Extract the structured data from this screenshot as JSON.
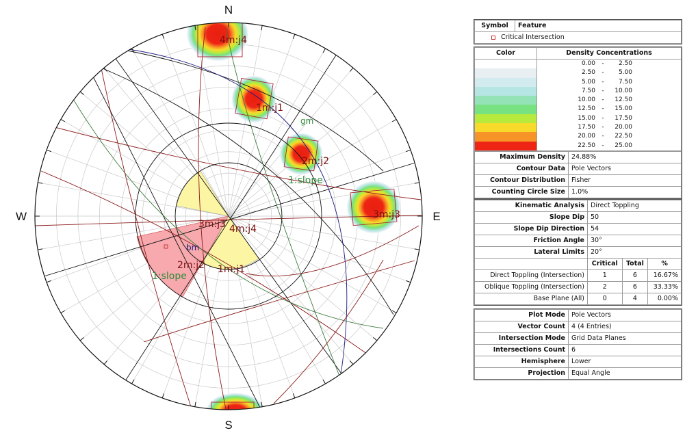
{
  "stereonet": {
    "directions": {
      "north": "N",
      "east": "E",
      "south": "S",
      "west": "W"
    },
    "set_labels": {
      "j1_pole": "1m:j1",
      "j2_pole": "2m:j2",
      "j3_pole": "3m:j3",
      "j4_pole": "4m:j4",
      "j1_plane": "1m:j1",
      "j2_plane": "2m:j2",
      "j3_plane": "3m:j3",
      "j4_plane": "4m:j4",
      "slope_pole": "1:slope",
      "slope_plane": "1:slope",
      "gm": "gm",
      "bm": "bm"
    },
    "colors": {
      "net_lines": "#a9a9a9",
      "circle": "#111111",
      "joint_planes": "#8b1a1a",
      "slope_plane": "#3b7a3b",
      "bm_plane": "#1c1c80",
      "critical_zone": "#f7a9ad",
      "secondary_zone": "#fbf5a4",
      "label_red": "#7a0f0f",
      "label_green": "#2e8b3a"
    }
  },
  "legend_symbol": {
    "headers": {
      "symbol": "Symbol",
      "feature": "Feature"
    },
    "rows": [
      {
        "feature": "Critical Intersection"
      }
    ]
  },
  "density": {
    "headers": {
      "color": "Color",
      "concentrations": "Density Concentrations"
    },
    "ranges": [
      {
        "from": "0.00",
        "sep": "-",
        "to": "2.50",
        "color": "#ffffff"
      },
      {
        "from": "2.50",
        "sep": "-",
        "to": "5.00",
        "color": "#e7eff3"
      },
      {
        "from": "5.00",
        "sep": "-",
        "to": "7.50",
        "color": "#d2ebef"
      },
      {
        "from": "7.50",
        "sep": "-",
        "to": "10.00",
        "color": "#b6e6e3"
      },
      {
        "from": "10.00",
        "sep": "-",
        "to": "12.50",
        "color": "#93e3b6"
      },
      {
        "from": "12.50",
        "sep": "-",
        "to": "15.00",
        "color": "#78e180"
      },
      {
        "from": "15.00",
        "sep": "-",
        "to": "17.50",
        "color": "#b8ea3e"
      },
      {
        "from": "17.50",
        "sep": "-",
        "to": "20.00",
        "color": "#f8db2a"
      },
      {
        "from": "20.00",
        "sep": "-",
        "to": "22.50",
        "color": "#f79428"
      },
      {
        "from": "22.50",
        "sep": "-",
        "to": "25.00",
        "color": "#ee2414"
      }
    ],
    "stats": [
      {
        "label": "Maximum Density",
        "value": "24.88%"
      },
      {
        "label": "Contour Data",
        "value": "Pole Vectors"
      },
      {
        "label": "Contour Distribution",
        "value": "Fisher"
      },
      {
        "label": "Counting Circle Size",
        "value": "1.0%"
      }
    ]
  },
  "kinematic": {
    "params": [
      {
        "label": "Kinematic Analysis",
        "value": "Direct Toppling"
      },
      {
        "label": "Slope Dip",
        "value": "50"
      },
      {
        "label": "Slope Dip Direction",
        "value": "54"
      },
      {
        "label": "Friction Angle",
        "value": "30°"
      },
      {
        "label": "Lateral Limits",
        "value": "20°"
      }
    ],
    "headers": {
      "critical": "Critical",
      "total": "Total",
      "pct": "%"
    },
    "rows": [
      {
        "name": "Direct Toppling (Intersection)",
        "critical": "1",
        "total": "6",
        "pct": "16.67%"
      },
      {
        "name": "Oblique Toppling (Intersection)",
        "critical": "2",
        "total": "6",
        "pct": "33.33%"
      },
      {
        "name": "Base Plane (All)",
        "critical": "0",
        "total": "4",
        "pct": "0.00%"
      }
    ]
  },
  "plot_info": [
    {
      "label": "Plot Mode",
      "value": "Pole Vectors"
    },
    {
      "label": "Vector Count",
      "value": "4 (4 Entries)"
    },
    {
      "label": "Intersection Mode",
      "value": "Grid Data Planes"
    },
    {
      "label": "Intersections Count",
      "value": "6"
    },
    {
      "label": "Hemisphere",
      "value": "Lower"
    },
    {
      "label": "Projection",
      "value": "Equal Angle"
    }
  ]
}
